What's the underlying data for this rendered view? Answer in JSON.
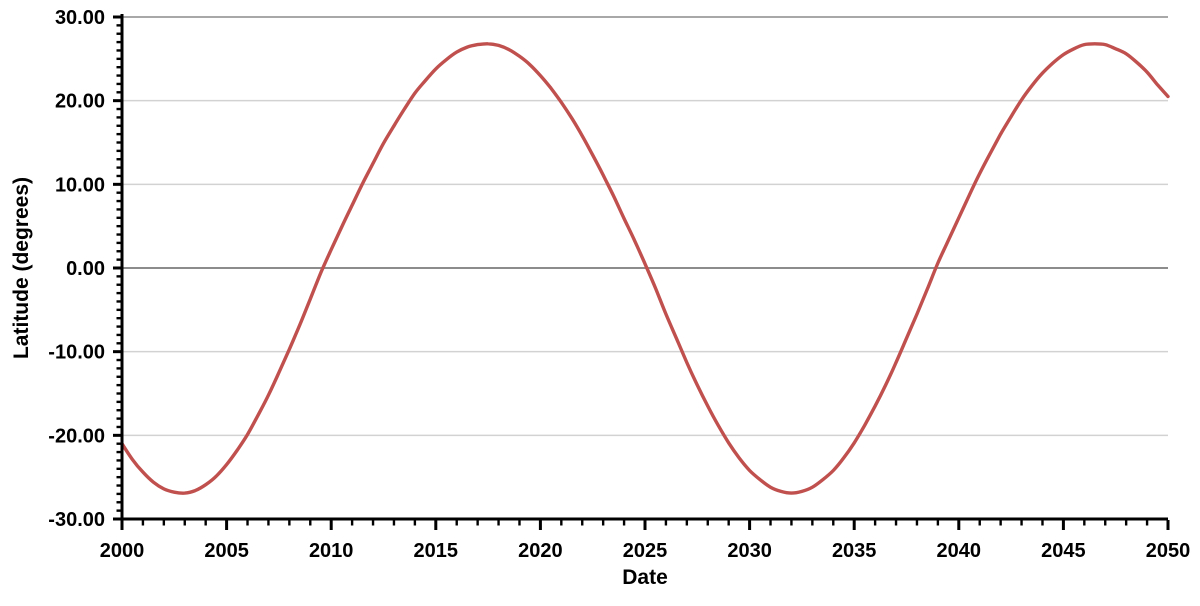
{
  "chart_data": {
    "type": "line",
    "title": "",
    "xlabel": "Date",
    "ylabel": "Latitude (degrees)",
    "xlim": [
      2000,
      2050
    ],
    "ylim": [
      -30,
      30
    ],
    "x_major_interval": 5,
    "x_minor_interval": 1,
    "y_major_interval": 10,
    "y_minor_interval": 1,
    "grid": "horizontal-major-only",
    "legend_position": "none",
    "x_tick_labels": [
      "2000",
      "2005",
      "2010",
      "2015",
      "2020",
      "2025",
      "2030",
      "2035",
      "2040",
      "2045",
      "2050"
    ],
    "y_tick_labels": [
      "30.00",
      "20.00",
      "10.00",
      "0.00",
      "-10.00",
      "-20.00",
      "-30.00"
    ],
    "colors": {
      "line": "#C0504D",
      "gridline": "#D2D2D2",
      "zero_line": "#8C8C8C",
      "top_line": "#A8A8A8",
      "axis": "#000000",
      "background": "#FFFFFF",
      "text": "#000000"
    },
    "series": [
      {
        "name": "Latitude",
        "color": "#C0504D",
        "x": [
          2000,
          2000.5,
          2001,
          2001.5,
          2002,
          2002.5,
          2003,
          2003.5,
          2004,
          2004.5,
          2005,
          2005.5,
          2006,
          2006.5,
          2007,
          2007.5,
          2008,
          2008.5,
          2009,
          2009.5,
          2010,
          2010.5,
          2011,
          2011.5,
          2012,
          2012.5,
          2013,
          2013.5,
          2014,
          2014.5,
          2015,
          2015.5,
          2016,
          2016.5,
          2017,
          2017.5,
          2018,
          2018.5,
          2019,
          2019.5,
          2020,
          2020.5,
          2021,
          2021.5,
          2022,
          2022.5,
          2023,
          2023.5,
          2024,
          2024.5,
          2025,
          2025.5,
          2026,
          2026.5,
          2027,
          2027.5,
          2028,
          2028.5,
          2029,
          2029.5,
          2030,
          2030.5,
          2031,
          2031.5,
          2032,
          2032.5,
          2033,
          2033.5,
          2034,
          2034.5,
          2035,
          2035.5,
          2036,
          2036.5,
          2037,
          2037.5,
          2038,
          2038.5,
          2039,
          2039.5,
          2040,
          2040.5,
          2041,
          2041.5,
          2042,
          2042.5,
          2043,
          2043.5,
          2044,
          2044.5,
          2045,
          2045.5,
          2046,
          2046.5,
          2047,
          2047.5,
          2048,
          2048.5,
          2049,
          2049.5,
          2050
        ],
        "y": [
          -21.0,
          -22.9,
          -24.4,
          -25.6,
          -26.4,
          -26.8,
          -26.9,
          -26.6,
          -25.9,
          -24.9,
          -23.5,
          -21.8,
          -19.9,
          -17.6,
          -15.2,
          -12.5,
          -9.7,
          -6.8,
          -3.7,
          -0.6,
          2.2,
          4.9,
          7.5,
          10.1,
          12.5,
          14.9,
          17.0,
          19.0,
          20.9,
          22.4,
          23.8,
          24.9,
          25.8,
          26.4,
          26.7,
          26.8,
          26.6,
          26.1,
          25.3,
          24.3,
          23.0,
          21.5,
          19.8,
          17.9,
          15.8,
          13.5,
          11.1,
          8.6,
          5.9,
          3.3,
          0.5,
          -2.4,
          -5.5,
          -8.4,
          -11.3,
          -14.0,
          -16.5,
          -18.8,
          -20.9,
          -22.7,
          -24.2,
          -25.3,
          -26.2,
          -26.7,
          -26.9,
          -26.7,
          -26.2,
          -25.3,
          -24.2,
          -22.7,
          -20.9,
          -18.8,
          -16.5,
          -14.0,
          -11.3,
          -8.4,
          -5.5,
          -2.5,
          0.6,
          3.3,
          6.0,
          8.7,
          11.3,
          13.7,
          16.0,
          18.1,
          20.1,
          21.8,
          23.3,
          24.5,
          25.5,
          26.2,
          26.7,
          26.8,
          26.7,
          26.2,
          25.6,
          24.6,
          23.4,
          21.9,
          20.5
        ],
        "key_points": {
          "start": [
            2000,
            -21.0
          ],
          "minimum_1": [
            2002.8,
            -26.9
          ],
          "zero_up_1": [
            2009.6,
            0
          ],
          "maximum_1": [
            2017.4,
            26.8
          ],
          "zero_down_1": [
            2025.1,
            0
          ],
          "minimum_2": [
            2032.0,
            -26.9
          ],
          "zero_up_2": [
            2038.9,
            0
          ],
          "maximum_2": [
            2046.5,
            26.8
          ],
          "end": [
            2050,
            20.5
          ]
        }
      }
    ]
  }
}
